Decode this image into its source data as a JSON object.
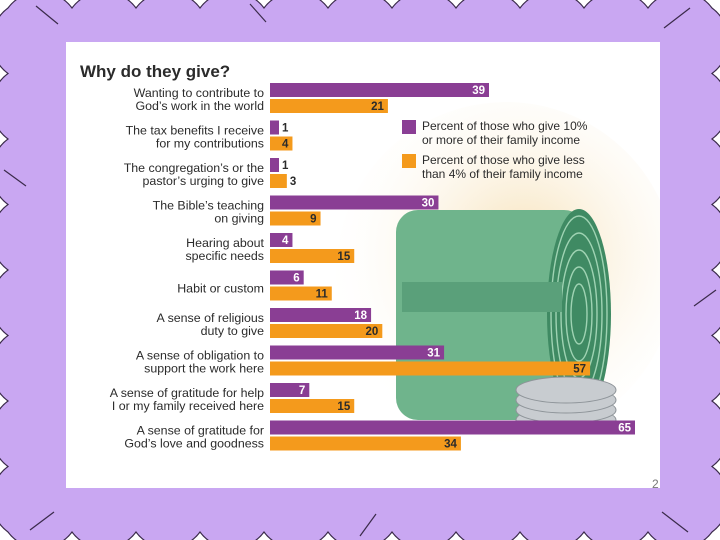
{
  "slide": {
    "number": "2"
  },
  "colors": {
    "frame": "#c9a7f2",
    "frame_edge": "#3a2a4a",
    "series_10": "#8a3e94",
    "series_4": "#f49a1c",
    "money": "#6fb48c",
    "money_dark": "#3f8a63",
    "coin": "#c8ccd0",
    "glow": "#f6e0b4"
  },
  "chart_data": {
    "type": "bar",
    "orientation": "horizontal",
    "title": "Why do they give?",
    "categories": [
      [
        "Wanting to contribute to",
        "God’s work in the world"
      ],
      [
        "The tax benefits I receive",
        "for my contributions"
      ],
      [
        "The congregation’s or the",
        "pastor’s urging to give"
      ],
      [
        "The Bible’s teaching",
        "on giving"
      ],
      [
        "Hearing about",
        "specific needs"
      ],
      [
        "Habit or custom"
      ],
      [
        "A sense of religious",
        "duty to give"
      ],
      [
        "A sense of obligation to",
        "support the work here"
      ],
      [
        "A sense of gratitude for help",
        "I or my family received here"
      ],
      [
        "A sense of gratitude for",
        "God’s love and goodness"
      ]
    ],
    "series": [
      {
        "name": [
          "Percent of those who give 10%",
          "or more of their family income"
        ],
        "color": "#8a3e94",
        "values": [
          39,
          1,
          1,
          30,
          4,
          6,
          18,
          31,
          7,
          65
        ]
      },
      {
        "name": [
          "Percent of those who give less",
          "than 4% of their family income"
        ],
        "color": "#f49a1c",
        "values": [
          21,
          4,
          3,
          9,
          15,
          11,
          20,
          57,
          15,
          34
        ]
      }
    ],
    "xlim": [
      0,
      65
    ],
    "legend": "top-right",
    "grid": false
  }
}
